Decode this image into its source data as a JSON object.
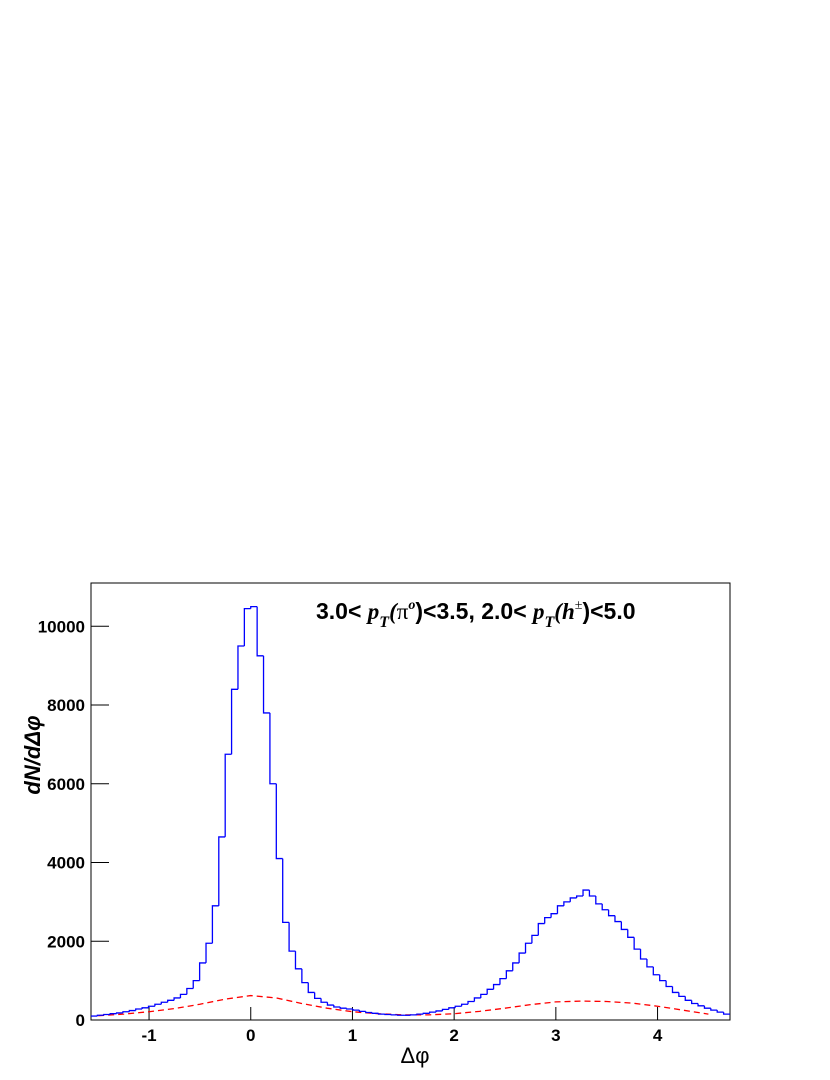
{
  "chart_data": {
    "type": "histogram",
    "title": [
      "3.0< ",
      "p",
      "T",
      "(",
      "π",
      "o",
      ")<3.5,  2.0< ",
      "p",
      "T",
      "(",
      "h",
      "±",
      ")<5.0"
    ],
    "xlabel": "Δφ",
    "ylabel": "dN/dΔφ",
    "color": "#0000ff",
    "bins": [
      -1.5708,
      -1.508,
      -1.4451,
      -1.3823,
      -1.3195,
      -1.2566,
      -1.1938,
      -1.131,
      -1.0681,
      -1.0053,
      -0.9425,
      -0.8796,
      -0.8168,
      -0.754,
      -0.6912,
      -0.6283,
      -0.5655,
      -0.5027,
      -0.4398,
      -0.377,
      -0.3142,
      -0.2513,
      -0.1885,
      -0.1257,
      -0.0628,
      0,
      0.0628,
      0.1257,
      0.1885,
      0.2513,
      0.3142,
      0.377,
      0.4398,
      0.5027,
      0.5655,
      0.6283,
      0.6912,
      0.754,
      0.8168,
      0.8796,
      0.9425,
      1.0053,
      1.0681,
      1.131,
      1.1938,
      1.2566,
      1.3195,
      1.3823,
      1.4451,
      1.508,
      1.5708,
      1.6336,
      1.6965,
      1.7593,
      1.8221,
      1.885,
      1.9478,
      2.0106,
      2.0735,
      2.1363,
      2.1991,
      2.2619,
      2.3248,
      2.3876,
      2.4504,
      2.5133,
      2.5761,
      2.6389,
      2.7018,
      2.7646,
      2.8274,
      2.8903,
      2.9531,
      3.0159,
      3.0788,
      3.1416,
      3.2044,
      3.2673,
      3.3301,
      3.3929,
      3.4558,
      3.5186,
      3.5814,
      3.6442,
      3.7071,
      3.7699,
      3.8327,
      3.8956,
      3.9584,
      4.0212,
      4.0841,
      4.1469,
      4.2097,
      4.2726,
      4.3354,
      4.3982,
      4.4611,
      4.5239,
      4.5867,
      4.6496,
      4.7124
    ],
    "values": [
      100,
      120,
      140,
      160,
      180,
      210,
      240,
      280,
      310,
      350,
      400,
      450,
      500,
      560,
      650,
      800,
      1000,
      1450,
      1950,
      2900,
      4650,
      6750,
      8400,
      9500,
      10450,
      10500,
      9250,
      7800,
      6000,
      4100,
      2480,
      1750,
      1300,
      950,
      700,
      550,
      450,
      380,
      330,
      300,
      280,
      250,
      220,
      190,
      170,
      150,
      140,
      130,
      120,
      120,
      130,
      150,
      170,
      200,
      230,
      270,
      310,
      350,
      400,
      470,
      560,
      650,
      780,
      900,
      1050,
      1250,
      1450,
      1700,
      1950,
      2150,
      2450,
      2600,
      2700,
      2900,
      3000,
      3100,
      3150,
      3300,
      3150,
      2950,
      2800,
      2650,
      2500,
      2300,
      2100,
      1800,
      1550,
      1350,
      1150,
      1000,
      850,
      700,
      600,
      500,
      420,
      360,
      300,
      250,
      200,
      150
    ],
    "curve": {
      "type": "line",
      "color": "#ff0000",
      "dashed": true,
      "x": [
        -1.5,
        -1.25,
        -1,
        -0.75,
        -0.5,
        -0.25,
        0,
        0.25,
        0.5,
        0.75,
        1,
        1.25,
        1.5,
        1.75,
        2,
        2.25,
        2.5,
        2.75,
        3,
        3.25,
        3.5,
        3.75,
        4,
        4.25,
        4.5
      ],
      "values": [
        110,
        150,
        210,
        290,
        400,
        530,
        620,
        560,
        420,
        300,
        210,
        160,
        130,
        130,
        160,
        220,
        300,
        390,
        460,
        480,
        470,
        430,
        350,
        250,
        150
      ]
    },
    "xlim": [
      -1.5708,
      4.7124
    ],
    "ylim": [
      0,
      11100
    ],
    "xticks": [
      -1,
      0,
      1,
      2,
      3,
      4
    ],
    "yticks": [
      0,
      2000,
      4000,
      6000,
      8000,
      10000
    ]
  }
}
